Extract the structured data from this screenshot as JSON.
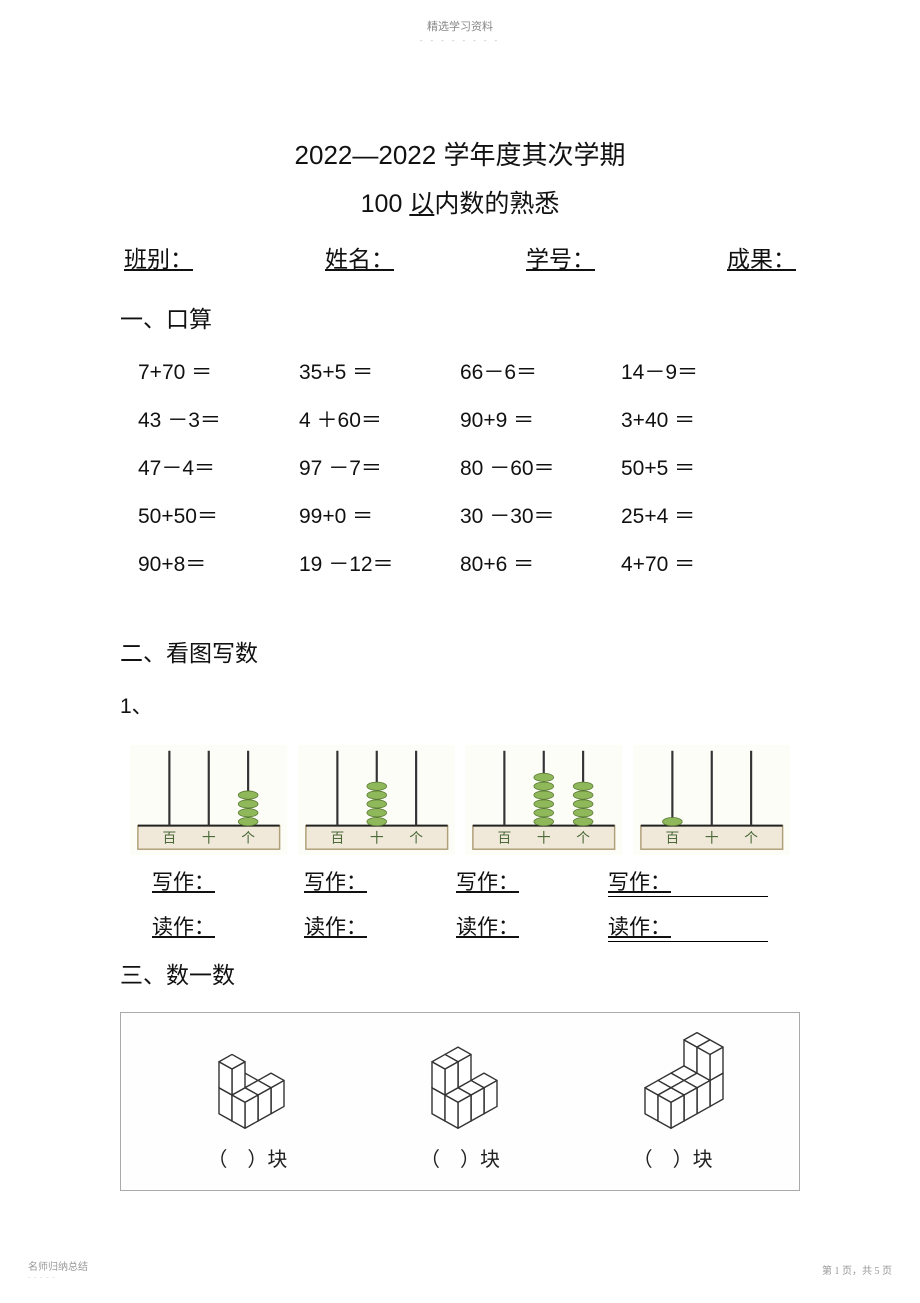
{
  "header": {
    "note": "精选学习资料",
    "dots": "- - - - - - - -"
  },
  "title1": "2022—2022 学年度其次学期",
  "title2_pre": "100 ",
  "title2_ul": "以",
  "title2_post": "内数的熟悉",
  "info": {
    "class": "班别：",
    "name": "姓名：",
    "id": "学号：",
    "score": "成果："
  },
  "sec1": "一、口算",
  "calc": [
    [
      "7+70 ＝",
      "35+5 ＝",
      "66－6＝",
      "14－9＝"
    ],
    [
      "43 －3＝",
      "4 ＋60＝",
      "90+9    ＝",
      "3+40 ＝"
    ],
    [
      "47－4＝",
      "97 －7＝",
      "80    －60＝",
      "50+5   ＝"
    ],
    [
      "50+50＝",
      "99+0    ＝",
      "30   －30＝",
      "25+4      ＝"
    ],
    [
      "90+8＝",
      "19     －12＝",
      "80+6    ＝",
      "4+70       ＝"
    ]
  ],
  "sec2": "二、看图写数",
  "sub1": "1、",
  "abacus": [
    {
      "bai": 0,
      "shi": 0,
      "ge": 4
    },
    {
      "bai": 0,
      "shi": 5,
      "ge": 0
    },
    {
      "bai": 0,
      "shi": 6,
      "ge": 5
    },
    {
      "bai": 1,
      "shi": 0,
      "ge": 0
    }
  ],
  "abacus_labels": {
    "bai": "百",
    "shi": "十",
    "ge": "个"
  },
  "abacus_colors": {
    "bead": "#8fb85a",
    "bead_stroke": "#5a7a34",
    "rod": "#333",
    "frame_fill": "#f0e8d8",
    "frame_stroke": "#b0a07a",
    "text": "#4a6a3a",
    "bg": "#fdfdf8"
  },
  "write": "写作：",
  "read": "读作：",
  "sec3": "三、数一数",
  "kuai_open": "（",
  "kuai_close": "）块",
  "cubes_stroke": "#333",
  "cubes_fill": "#ffffff",
  "footer": {
    "left": "名师归纳总结",
    "left_dots": "- - - - -",
    "right": "第 1 页，共 5 页"
  }
}
